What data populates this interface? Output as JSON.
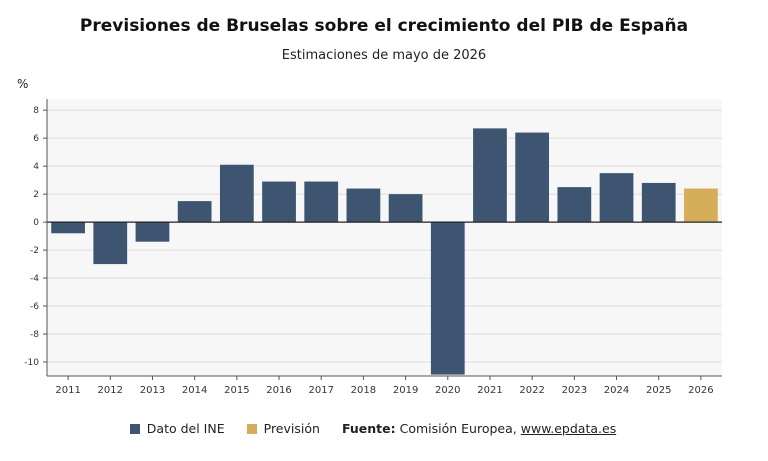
{
  "colors": {
    "observed": "#3d5570",
    "forecast": "#d6ad5a"
  },
  "chart_data": {
    "type": "bar",
    "title": "Previsiones de Bruselas sobre el crecimiento del PIB de España",
    "subtitle": "Estimaciones de mayo de 2026",
    "ylabel": "%",
    "xlabel": "",
    "ylim": [
      -11,
      8.8
    ],
    "yticks": [
      8,
      6,
      4,
      2,
      0,
      -2,
      -4,
      -6,
      -8,
      -10
    ],
    "grid": true,
    "categories": [
      "2011",
      "2012",
      "2013",
      "2014",
      "2015",
      "2016",
      "2017",
      "2018",
      "2019",
      "2020",
      "2021",
      "2022",
      "2023",
      "2024",
      "2025",
      "2026"
    ],
    "values": [
      -0.8,
      -3.0,
      -1.4,
      1.5,
      4.1,
      2.9,
      2.9,
      2.4,
      2.0,
      -10.9,
      6.7,
      6.4,
      2.5,
      3.5,
      2.8,
      2.4
    ],
    "series_type": [
      "Dato del INE",
      "Dato del INE",
      "Dato del INE",
      "Dato del INE",
      "Dato del INE",
      "Dato del INE",
      "Dato del INE",
      "Dato del INE",
      "Dato del INE",
      "Dato del INE",
      "Dato del INE",
      "Dato del INE",
      "Dato del INE",
      "Dato del INE",
      "Dato del INE",
      "Previsión"
    ],
    "legend": [
      "Dato del INE",
      "Previsión"
    ],
    "legend_position": "bottom"
  },
  "legend": {
    "observed": "Dato del INE",
    "forecast": "Previsión"
  },
  "source": {
    "label": "Fuente:",
    "text": "Comisión Europea,",
    "link": "www.epdata.es"
  }
}
